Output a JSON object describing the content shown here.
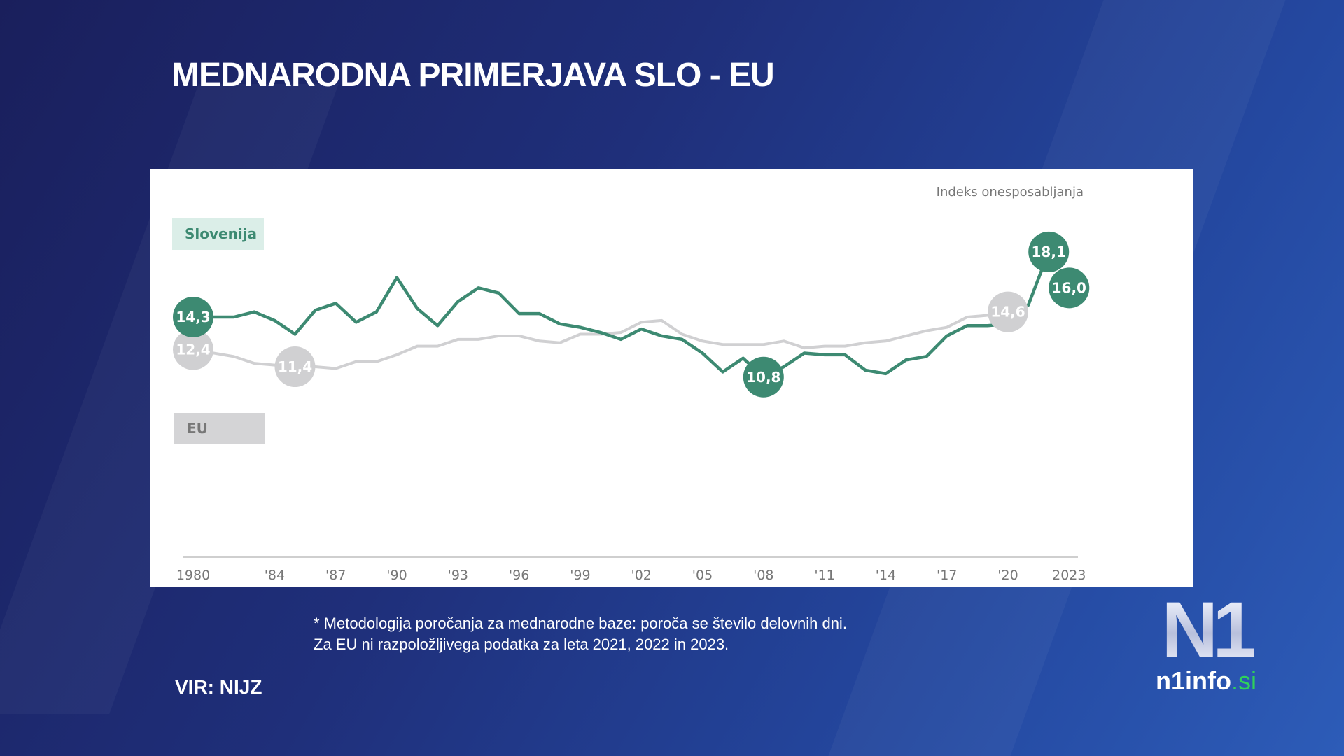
{
  "title": "MEDNARODNA PRIMERJAVA SLO - EU",
  "footnote": {
    "line1": "* Metodologija poročanja za mednarodne baze: poroča se število delovnih dni.",
    "line2": "Za EU ni razpoložljivega podatka za leta 2021, 2022 in 2023."
  },
  "source": "VIR: NIJZ",
  "logo": {
    "mark": "N1",
    "name": "n1info",
    "tld": ".si"
  },
  "chart_data": {
    "type": "line",
    "title": "",
    "ylabel": "Indeks onesposabljanja",
    "xlabel": "",
    "grid": false,
    "x_tick_labels": [
      {
        "year": 1980,
        "label": "1980"
      },
      {
        "year": 1984,
        "label": "'84"
      },
      {
        "year": 1987,
        "label": "'87"
      },
      {
        "year": 1990,
        "label": "'90"
      },
      {
        "year": 1993,
        "label": "'93"
      },
      {
        "year": 1996,
        "label": "'96"
      },
      {
        "year": 1999,
        "label": "'99"
      },
      {
        "year": 2002,
        "label": "'02"
      },
      {
        "year": 2005,
        "label": "'05"
      },
      {
        "year": 2008,
        "label": "'08"
      },
      {
        "year": 2011,
        "label": "'11"
      },
      {
        "year": 2014,
        "label": "'14"
      },
      {
        "year": 2017,
        "label": "'17"
      },
      {
        "year": 2020,
        "label": "'20"
      },
      {
        "year": 2023,
        "label": "2023"
      }
    ],
    "series": [
      {
        "name": "Slovenija",
        "color": "#3d8a72",
        "x": [
          1980,
          1981,
          1982,
          1983,
          1984,
          1985,
          1986,
          1987,
          1988,
          1989,
          1990,
          1991,
          1992,
          1993,
          1994,
          1995,
          1996,
          1997,
          1998,
          1999,
          2000,
          2001,
          2002,
          2003,
          2004,
          2005,
          2006,
          2007,
          2008,
          2009,
          2010,
          2011,
          2012,
          2013,
          2014,
          2015,
          2016,
          2017,
          2018,
          2019,
          2020,
          2021,
          2022,
          2023
        ],
        "y": [
          14.3,
          14.3,
          14.3,
          14.6,
          14.1,
          13.3,
          14.7,
          15.1,
          14.0,
          14.6,
          16.6,
          14.8,
          13.8,
          15.2,
          16.0,
          15.7,
          14.5,
          14.5,
          13.9,
          13.7,
          13.4,
          13.0,
          13.6,
          13.2,
          13.0,
          12.2,
          11.1,
          11.9,
          10.8,
          11.4,
          12.2,
          12.1,
          12.1,
          11.2,
          11.0,
          11.8,
          12.0,
          13.2,
          13.8,
          13.8,
          13.9,
          15.0,
          18.1,
          16.0
        ],
        "labels": [
          {
            "year": 1980,
            "text": "14,3"
          },
          {
            "year": 2008,
            "text": "10,8"
          },
          {
            "year": 2022,
            "text": "18,1"
          },
          {
            "year": 2023,
            "text": "16,0"
          }
        ]
      },
      {
        "name": "EU",
        "color": "#d0d0d2",
        "x": [
          1980,
          1981,
          1982,
          1983,
          1984,
          1985,
          1986,
          1987,
          1988,
          1989,
          1990,
          1991,
          1992,
          1993,
          1994,
          1995,
          1996,
          1997,
          1998,
          1999,
          2000,
          2001,
          2002,
          2003,
          2004,
          2005,
          2006,
          2007,
          2008,
          2009,
          2010,
          2011,
          2012,
          2013,
          2014,
          2015,
          2016,
          2017,
          2018,
          2019,
          2020
        ],
        "y": [
          12.4,
          12.2,
          12.0,
          11.6,
          11.5,
          11.4,
          11.4,
          11.3,
          11.7,
          11.7,
          12.1,
          12.6,
          12.6,
          13.0,
          13.0,
          13.2,
          13.2,
          12.9,
          12.8,
          13.3,
          13.3,
          13.4,
          14.0,
          14.1,
          13.3,
          12.9,
          12.7,
          12.7,
          12.7,
          12.9,
          12.5,
          12.6,
          12.6,
          12.8,
          12.9,
          13.2,
          13.5,
          13.7,
          14.3,
          14.4,
          14.6
        ],
        "labels": [
          {
            "year": 1980,
            "text": "12,4"
          },
          {
            "year": 1985,
            "text": "11,4"
          },
          {
            "year": 2020,
            "text": "14,6"
          }
        ]
      }
    ]
  }
}
